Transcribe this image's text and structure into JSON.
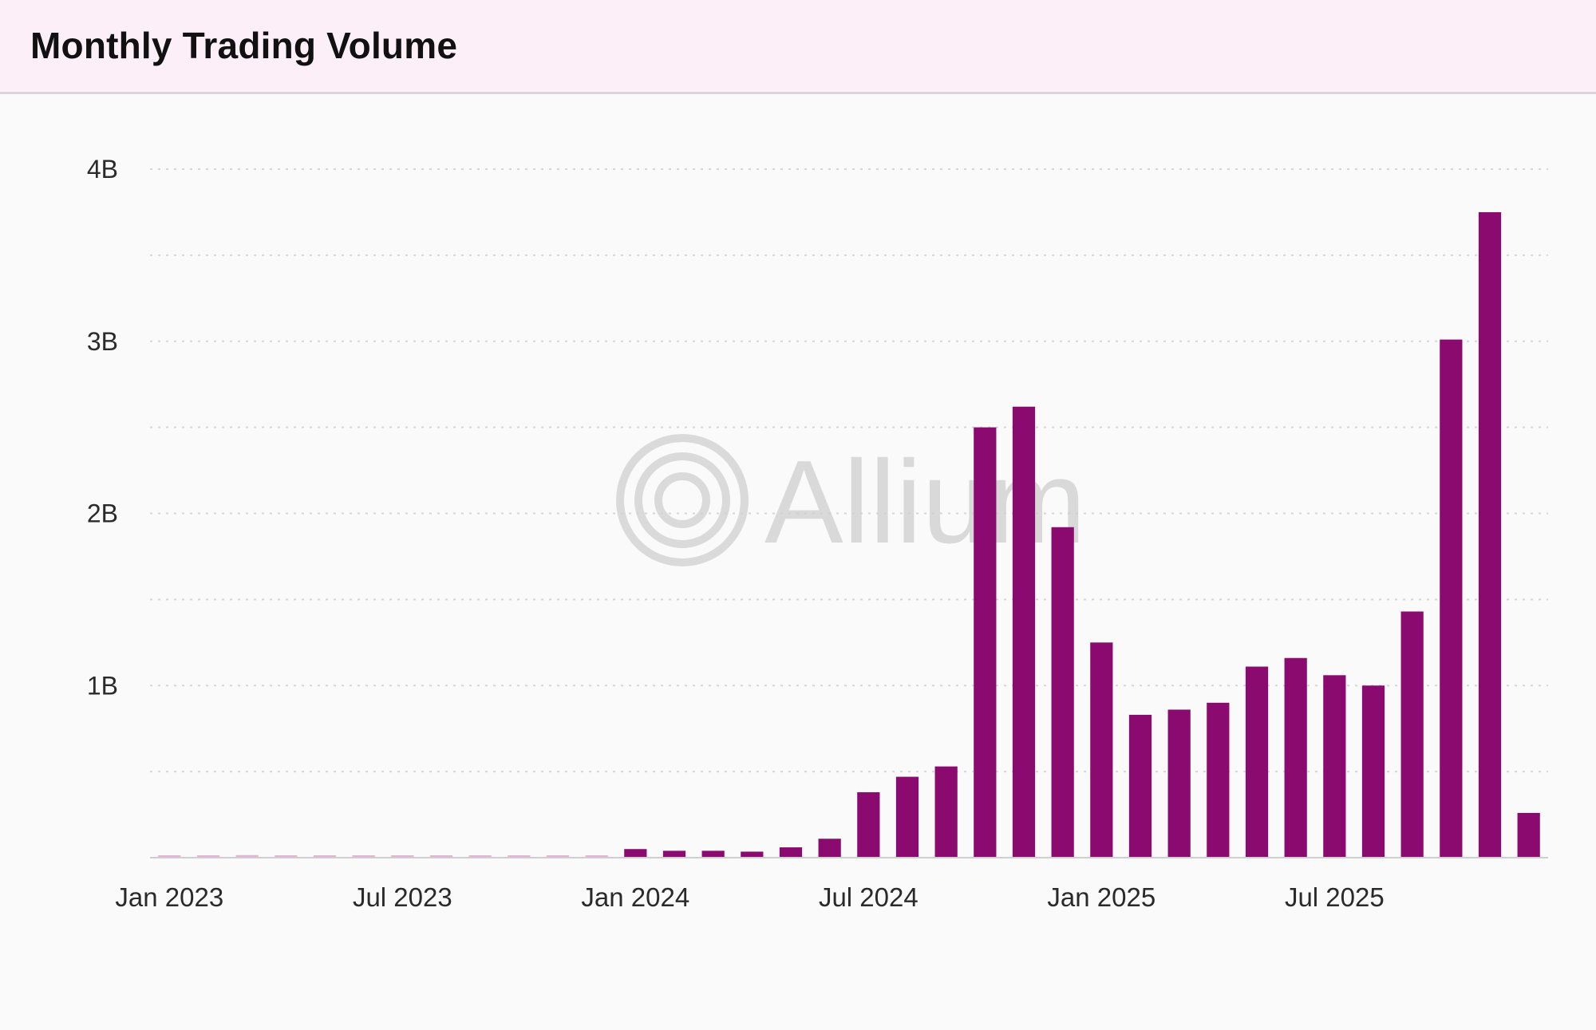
{
  "header": {
    "title": "Monthly Trading Volume"
  },
  "watermark": {
    "text": "Allium"
  },
  "colors": {
    "bar": "#8b0a70",
    "bar_faint": "#e6b3d6",
    "grid": "#d6d6d6",
    "axis": "#cfcfcf",
    "background": "#fafafb",
    "header_background": "#fdeff8"
  },
  "chart_data": {
    "type": "bar",
    "title": "Monthly Trading Volume",
    "xlabel": "",
    "ylabel": "",
    "ylim": [
      0,
      4000000000
    ],
    "grid": true,
    "y_ticks": [
      {
        "value": 1000000000,
        "label": "1B"
      },
      {
        "value": 2000000000,
        "label": "2B"
      },
      {
        "value": 3000000000,
        "label": "3B"
      },
      {
        "value": 4000000000,
        "label": "4B"
      }
    ],
    "x_ticks": [
      {
        "category": "2023-01",
        "label": "Jan 2023"
      },
      {
        "category": "2023-07",
        "label": "Jul 2023"
      },
      {
        "category": "2024-01",
        "label": "Jan 2024"
      },
      {
        "category": "2024-07",
        "label": "Jul 2024"
      },
      {
        "category": "2025-01",
        "label": "Jan 2025"
      },
      {
        "category": "2025-07",
        "label": "Jul 2025"
      }
    ],
    "categories": [
      "2023-01",
      "2023-02",
      "2023-03",
      "2023-04",
      "2023-05",
      "2023-06",
      "2023-07",
      "2023-08",
      "2023-09",
      "2023-10",
      "2023-11",
      "2023-12",
      "2024-01",
      "2024-02",
      "2024-03",
      "2024-04",
      "2024-05",
      "2024-06",
      "2024-07",
      "2024-08",
      "2024-09",
      "2024-10",
      "2024-11",
      "2024-12",
      "2025-01",
      "2025-02",
      "2025-03",
      "2025-04",
      "2025-05",
      "2025-06",
      "2025-07",
      "2025-08",
      "2025-09",
      "2025-10",
      "2025-11",
      "2025-12"
    ],
    "series": [
      {
        "name": "Monthly Trading Volume",
        "values": [
          2000000,
          3000000,
          15000000,
          2000000,
          5000000,
          4000000,
          5000000,
          6000000,
          4000000,
          6000000,
          8000000,
          7000000,
          50000000,
          40000000,
          40000000,
          35000000,
          60000000,
          110000000,
          380000000,
          470000000,
          530000000,
          2500000000,
          2620000000,
          1920000000,
          1250000000,
          830000000,
          860000000,
          900000000,
          1110000000,
          1160000000,
          1060000000,
          1000000000,
          1430000000,
          3010000000,
          3750000000,
          260000000
        ]
      }
    ]
  }
}
